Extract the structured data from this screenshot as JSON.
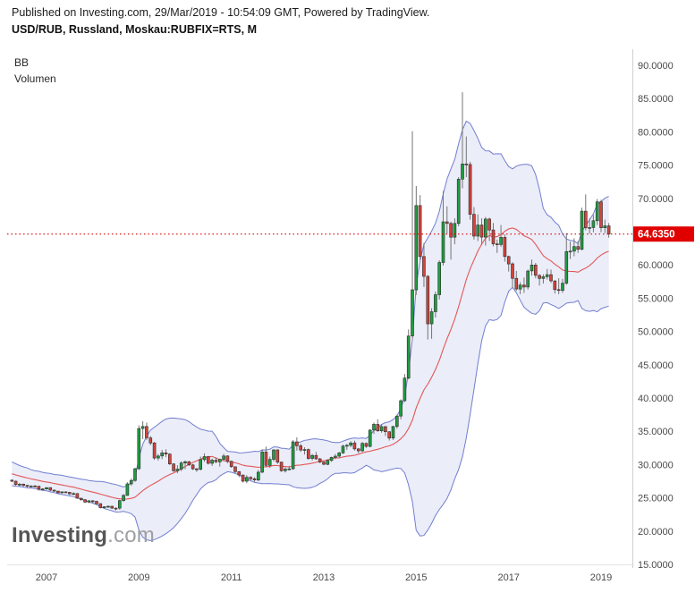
{
  "header": {
    "published_line": "Published on Investing.com, 29/Mar/2019 - 10:54:09 GMT, Powered by TradingView.",
    "symbol_line": "USD/RUB, Russland, Moskau:RUBFIX=RTS, M"
  },
  "indicators": {
    "bb": "BB",
    "volume": "Volumen"
  },
  "watermark": {
    "name": "Investing",
    "suffix": ".com"
  },
  "chart_data": {
    "type": "candlestick",
    "symbol": "USD/RUB",
    "market": "Russland, Moskau:RUBFIX=RTS",
    "interval": "M",
    "overlays": [
      "Bollinger Bands",
      "Volumen"
    ],
    "ylim": [
      15,
      91.75
    ],
    "grid": false,
    "axis": {
      "y_ticks": [
        "90.0000",
        "85.0000",
        "80.0000",
        "75.0000",
        "70.0000",
        "65.0000",
        "60.0000",
        "55.0000",
        "50.0000",
        "45.0000",
        "40.0000",
        "35.0000",
        "30.0000",
        "25.0000",
        "20.0000",
        "15.0000"
      ],
      "x_ticks": [
        {
          "label": "2007",
          "month": "2007-01"
        },
        {
          "label": "2009",
          "month": "2009-01"
        },
        {
          "label": "2011",
          "month": "2011-01"
        },
        {
          "label": "2013",
          "month": "2013-01"
        },
        {
          "label": "2015",
          "month": "2015-01"
        },
        {
          "label": "2017",
          "month": "2017-01"
        },
        {
          "label": "2019",
          "month": "2019-01"
        }
      ]
    },
    "price_line": {
      "price": 64.635,
      "label": "64.6350",
      "color": "#e00000"
    },
    "bollinger": {
      "length": 20,
      "mult": 2,
      "seed_closes": [
        31.0,
        30.55,
        30.2,
        29.85,
        29.5,
        29.65,
        29.1,
        28.7,
        28.95,
        28.45,
        28.2,
        28.55,
        28.05,
        27.85,
        28.1,
        27.9,
        27.7,
        28.0,
        27.8,
        27.65
      ]
    },
    "colors": {
      "up": "#1f9d40",
      "down": "#d1443c",
      "body_border": "#2d2d2d",
      "wick": "#757575",
      "band_line": "#5b68c9",
      "band_fill": "rgba(91,104,201,0.12)",
      "basis": "#e25757",
      "axis_text": "#4a4a4a",
      "axis_line": "#cfcfcf"
    },
    "columns": [
      "month",
      "open",
      "high",
      "low",
      "close"
    ],
    "candles": [
      [
        "2006-04",
        27.65,
        27.8,
        27.35,
        27.5
      ],
      [
        "2006-05",
        27.5,
        27.6,
        26.8,
        27.0
      ],
      [
        "2006-06",
        27.0,
        27.25,
        26.7,
        27.05
      ],
      [
        "2006-07",
        27.05,
        27.15,
        26.6,
        26.87
      ],
      [
        "2006-08",
        26.87,
        26.95,
        26.55,
        26.74
      ],
      [
        "2006-09",
        26.74,
        26.9,
        26.6,
        26.78
      ],
      [
        "2006-10",
        26.78,
        26.95,
        26.6,
        26.75
      ],
      [
        "2006-11",
        26.75,
        26.8,
        26.1,
        26.31
      ],
      [
        "2006-12",
        26.31,
        26.45,
        26.1,
        26.33
      ],
      [
        "2007-01",
        26.33,
        26.6,
        26.2,
        26.53
      ],
      [
        "2007-02",
        26.53,
        26.6,
        26.0,
        26.16
      ],
      [
        "2007-03",
        26.16,
        26.25,
        25.9,
        26.01
      ],
      [
        "2007-04",
        26.01,
        26.05,
        25.6,
        25.76
      ],
      [
        "2007-05",
        25.76,
        25.95,
        25.6,
        25.9
      ],
      [
        "2007-06",
        25.9,
        25.95,
        25.7,
        25.82
      ],
      [
        "2007-07",
        25.82,
        25.9,
        25.4,
        25.6
      ],
      [
        "2007-08",
        25.6,
        25.85,
        25.4,
        25.65
      ],
      [
        "2007-09",
        25.65,
        25.7,
        24.85,
        24.95
      ],
      [
        "2007-10",
        24.95,
        25.0,
        24.55,
        24.72
      ],
      [
        "2007-11",
        24.72,
        24.8,
        24.25,
        24.36
      ],
      [
        "2007-12",
        24.36,
        24.65,
        24.2,
        24.55
      ],
      [
        "2008-01",
        24.55,
        24.65,
        24.15,
        24.48
      ],
      [
        "2008-02",
        24.48,
        24.55,
        23.95,
        24.12
      ],
      [
        "2008-03",
        24.12,
        24.2,
        23.4,
        23.51
      ],
      [
        "2008-04",
        23.51,
        23.75,
        23.35,
        23.65
      ],
      [
        "2008-05",
        23.65,
        23.85,
        23.5,
        23.74
      ],
      [
        "2008-06",
        23.74,
        23.8,
        23.35,
        23.46
      ],
      [
        "2008-07",
        23.46,
        23.55,
        23.1,
        23.45
      ],
      [
        "2008-08",
        23.45,
        24.7,
        23.2,
        24.58
      ],
      [
        "2008-09",
        24.58,
        25.55,
        24.4,
        25.37
      ],
      [
        "2008-10",
        25.37,
        27.35,
        25.3,
        27.1
      ],
      [
        "2008-11",
        27.1,
        27.9,
        26.8,
        27.61
      ],
      [
        "2008-12",
        27.61,
        29.5,
        27.4,
        29.38
      ],
      [
        "2009-01",
        29.38,
        35.9,
        29.2,
        35.41
      ],
      [
        "2009-02",
        35.41,
        36.5,
        33.8,
        35.72
      ],
      [
        "2009-03",
        35.72,
        36.3,
        33.7,
        34.01
      ],
      [
        "2009-04",
        34.01,
        34.3,
        32.9,
        33.25
      ],
      [
        "2009-05",
        33.25,
        33.4,
        30.7,
        30.98
      ],
      [
        "2009-06",
        30.98,
        31.6,
        30.6,
        31.29
      ],
      [
        "2009-07",
        31.29,
        32.2,
        30.8,
        31.76
      ],
      [
        "2009-08",
        31.76,
        32.3,
        31.1,
        31.57
      ],
      [
        "2009-09",
        31.57,
        31.7,
        29.9,
        30.09
      ],
      [
        "2009-10",
        30.09,
        30.2,
        28.9,
        29.05
      ],
      [
        "2009-11",
        29.05,
        29.9,
        28.7,
        29.31
      ],
      [
        "2009-12",
        29.31,
        30.5,
        29.0,
        30.24
      ],
      [
        "2010-01",
        30.24,
        30.6,
        29.3,
        30.43
      ],
      [
        "2010-02",
        30.43,
        30.55,
        29.8,
        29.95
      ],
      [
        "2010-03",
        29.95,
        30.1,
        29.2,
        29.36
      ],
      [
        "2010-04",
        29.36,
        29.5,
        28.9,
        29.29
      ],
      [
        "2010-05",
        29.29,
        31.2,
        29.1,
        30.74
      ],
      [
        "2010-06",
        30.74,
        31.7,
        30.4,
        31.2
      ],
      [
        "2010-07",
        31.2,
        31.3,
        30.0,
        30.19
      ],
      [
        "2010-08",
        30.19,
        30.9,
        29.8,
        30.66
      ],
      [
        "2010-09",
        30.66,
        31.1,
        30.2,
        30.4
      ],
      [
        "2010-10",
        30.4,
        30.9,
        29.7,
        30.78
      ],
      [
        "2010-11",
        30.78,
        31.6,
        30.5,
        31.29
      ],
      [
        "2010-12",
        31.29,
        31.4,
        30.2,
        30.48
      ],
      [
        "2011-01",
        30.48,
        30.6,
        29.5,
        29.67
      ],
      [
        "2011-02",
        29.67,
        29.75,
        28.7,
        28.94
      ],
      [
        "2011-03",
        28.94,
        29.0,
        28.1,
        28.43
      ],
      [
        "2011-04",
        28.43,
        28.5,
        27.3,
        27.5
      ],
      [
        "2011-05",
        27.5,
        28.4,
        27.2,
        28.08
      ],
      [
        "2011-06",
        28.08,
        28.25,
        27.6,
        27.87
      ],
      [
        "2011-07",
        27.87,
        28.1,
        27.4,
        27.68
      ],
      [
        "2011-08",
        27.68,
        29.2,
        27.5,
        28.86
      ],
      [
        "2011-09",
        28.86,
        32.3,
        28.7,
        31.88
      ],
      [
        "2011-10",
        31.88,
        32.7,
        29.6,
        29.88
      ],
      [
        "2011-11",
        29.88,
        31.2,
        29.5,
        30.78
      ],
      [
        "2011-12",
        30.78,
        32.3,
        30.5,
        32.2
      ],
      [
        "2012-01",
        32.2,
        32.3,
        30.1,
        30.36
      ],
      [
        "2012-02",
        30.36,
        30.45,
        28.9,
        29.07
      ],
      [
        "2012-03",
        29.07,
        29.6,
        28.8,
        29.33
      ],
      [
        "2012-04",
        29.33,
        29.8,
        29.1,
        29.36
      ],
      [
        "2012-05",
        29.36,
        33.7,
        29.2,
        33.41
      ],
      [
        "2012-06",
        33.41,
        34.1,
        32.1,
        32.82
      ],
      [
        "2012-07",
        32.82,
        33.1,
        31.9,
        32.19
      ],
      [
        "2012-08",
        32.19,
        32.6,
        31.5,
        32.26
      ],
      [
        "2012-09",
        32.26,
        32.4,
        30.7,
        30.92
      ],
      [
        "2012-10",
        30.92,
        31.6,
        30.6,
        31.37
      ],
      [
        "2012-11",
        31.37,
        31.9,
        30.7,
        30.86
      ],
      [
        "2012-12",
        30.86,
        31.0,
        30.2,
        30.37
      ],
      [
        "2013-01",
        30.37,
        30.5,
        29.9,
        30.03
      ],
      [
        "2013-02",
        30.03,
        30.8,
        29.9,
        30.62
      ],
      [
        "2013-03",
        30.62,
        31.2,
        30.4,
        31.08
      ],
      [
        "2013-04",
        31.08,
        31.6,
        30.8,
        31.26
      ],
      [
        "2013-05",
        31.26,
        31.9,
        31.0,
        31.76
      ],
      [
        "2013-06",
        31.76,
        33.0,
        31.6,
        32.77
      ],
      [
        "2013-07",
        32.77,
        33.1,
        32.2,
        32.89
      ],
      [
        "2013-08",
        32.89,
        33.5,
        32.6,
        33.25
      ],
      [
        "2013-09",
        33.25,
        33.6,
        32.1,
        32.35
      ],
      [
        "2013-10",
        32.35,
        32.5,
        31.7,
        32.06
      ],
      [
        "2013-11",
        32.06,
        33.4,
        31.9,
        33.19
      ],
      [
        "2013-12",
        33.19,
        33.3,
        32.5,
        32.73
      ],
      [
        "2014-01",
        32.73,
        35.3,
        32.6,
        35.18
      ],
      [
        "2014-02",
        35.18,
        36.3,
        34.6,
        36.05
      ],
      [
        "2014-03",
        36.05,
        36.8,
        34.9,
        35.07
      ],
      [
        "2014-04",
        35.07,
        36.1,
        34.8,
        35.7
      ],
      [
        "2014-05",
        35.7,
        35.8,
        34.3,
        34.93
      ],
      [
        "2014-06",
        34.93,
        35.0,
        33.6,
        33.98
      ],
      [
        "2014-07",
        33.98,
        35.8,
        33.7,
        35.73
      ],
      [
        "2014-08",
        35.73,
        37.5,
        35.4,
        37.29
      ],
      [
        "2014-09",
        37.29,
        39.8,
        36.8,
        39.6
      ],
      [
        "2014-10",
        39.6,
        43.6,
        39.4,
        43.0
      ],
      [
        "2014-11",
        43.0,
        50.3,
        42.8,
        49.32
      ],
      [
        "2014-12",
        49.32,
        80.1,
        48.8,
        56.26
      ],
      [
        "2015-01",
        56.26,
        71.85,
        55.5,
        68.93
      ],
      [
        "2015-02",
        68.93,
        70.5,
        60.7,
        61.27
      ],
      [
        "2015-03",
        61.27,
        63.3,
        56.7,
        58.28
      ],
      [
        "2015-04",
        58.28,
        58.5,
        48.8,
        51.14
      ],
      [
        "2015-05",
        51.14,
        53.5,
        48.9,
        52.97
      ],
      [
        "2015-06",
        52.97,
        56.0,
        52.1,
        55.52
      ],
      [
        "2015-07",
        55.52,
        60.7,
        54.8,
        60.36
      ],
      [
        "2015-08",
        60.36,
        71.1,
        59.9,
        66.48
      ],
      [
        "2015-09",
        66.48,
        68.8,
        64.7,
        66.24
      ],
      [
        "2015-10",
        66.24,
        66.5,
        60.8,
        64.17
      ],
      [
        "2015-11",
        64.17,
        67.0,
        63.1,
        66.24
      ],
      [
        "2015-12",
        66.24,
        73.2,
        65.8,
        72.88
      ],
      [
        "2016-01",
        72.88,
        85.96,
        71.5,
        75.17
      ],
      [
        "2016-02",
        75.17,
        79.3,
        73.2,
        75.09
      ],
      [
        "2016-03",
        75.09,
        75.5,
        66.8,
        67.61
      ],
      [
        "2016-04",
        67.61,
        68.7,
        63.8,
        64.33
      ],
      [
        "2016-05",
        64.33,
        67.6,
        63.6,
        65.99
      ],
      [
        "2016-06",
        65.99,
        67.0,
        63.0,
        64.18
      ],
      [
        "2016-07",
        64.18,
        67.2,
        62.9,
        66.9
      ],
      [
        "2016-08",
        66.9,
        67.1,
        63.6,
        65.25
      ],
      [
        "2016-09",
        65.25,
        66.3,
        62.8,
        63.16
      ],
      [
        "2016-10",
        63.16,
        63.8,
        61.8,
        63.07
      ],
      [
        "2016-11",
        63.07,
        66.0,
        62.7,
        64.14
      ],
      [
        "2016-12",
        64.14,
        64.6,
        60.5,
        61.27
      ],
      [
        "2017-01",
        61.27,
        61.4,
        59.0,
        60.16
      ],
      [
        "2017-02",
        60.16,
        60.4,
        56.5,
        57.98
      ],
      [
        "2017-03",
        57.98,
        59.1,
        56.1,
        56.38
      ],
      [
        "2017-04",
        56.38,
        57.4,
        55.6,
        56.98
      ],
      [
        "2017-05",
        56.98,
        58.1,
        55.8,
        56.69
      ],
      [
        "2017-06",
        56.69,
        59.3,
        56.3,
        59.09
      ],
      [
        "2017-07",
        59.09,
        60.8,
        58.4,
        59.98
      ],
      [
        "2017-08",
        59.98,
        60.3,
        58.0,
        58.43
      ],
      [
        "2017-09",
        58.43,
        58.6,
        56.9,
        57.97
      ],
      [
        "2017-10",
        57.97,
        58.6,
        57.2,
        58.23
      ],
      [
        "2017-11",
        58.23,
        59.4,
        57.8,
        58.53
      ],
      [
        "2017-12",
        58.53,
        59.3,
        57.3,
        57.6
      ],
      [
        "2018-01",
        57.6,
        57.7,
        55.7,
        56.29
      ],
      [
        "2018-02",
        56.29,
        58.0,
        55.6,
        56.17
      ],
      [
        "2018-03",
        56.17,
        57.9,
        55.8,
        57.26
      ],
      [
        "2018-04",
        57.26,
        64.8,
        57.0,
        62.0
      ],
      [
        "2018-05",
        62.0,
        63.5,
        60.9,
        62.07
      ],
      [
        "2018-06",
        62.07,
        64.0,
        61.3,
        62.76
      ],
      [
        "2018-07",
        62.76,
        63.6,
        61.8,
        62.34
      ],
      [
        "2018-08",
        62.34,
        68.6,
        62.2,
        68.08
      ],
      [
        "2018-09",
        68.08,
        70.6,
        65.2,
        65.59
      ],
      [
        "2018-10",
        65.59,
        67.0,
        64.7,
        65.62
      ],
      [
        "2018-11",
        65.62,
        67.5,
        64.9,
        66.64
      ],
      [
        "2018-12",
        66.64,
        69.9,
        66.0,
        69.47
      ],
      [
        "2019-01",
        69.47,
        69.8,
        64.9,
        65.58
      ],
      [
        "2019-02",
        65.58,
        66.8,
        64.8,
        65.88
      ],
      [
        "2019-03",
        65.88,
        66.3,
        64.1,
        64.64
      ]
    ]
  }
}
